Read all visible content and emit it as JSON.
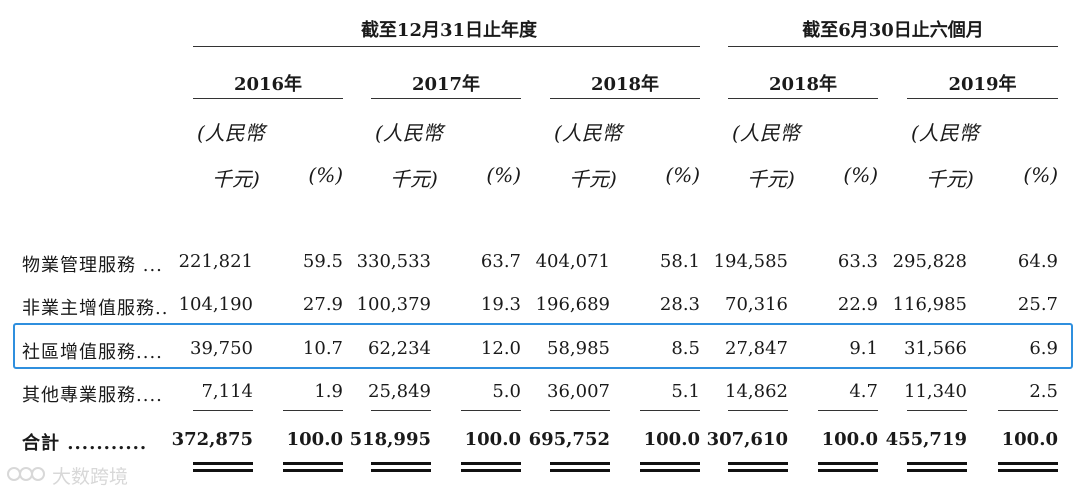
{
  "header": {
    "group1": "截至12月31日止年度",
    "group2": "截至6月30日止六個月",
    "years": [
      "2016年",
      "2017年",
      "2018年",
      "2018年",
      "2019年"
    ],
    "unit_line1": "(人民幣",
    "unit_line2": "千元)",
    "pct": "(%)"
  },
  "rows": [
    {
      "label": "物業管理服務 ...",
      "values": [
        "221,821",
        "59.5",
        "330,533",
        "63.7",
        "404,071",
        "58.1",
        "194,585",
        "63.3",
        "295,828",
        "64.9"
      ]
    },
    {
      "label": "非業主增值服務..",
      "values": [
        "104,190",
        "27.9",
        "100,379",
        "19.3",
        "196,689",
        "28.3",
        "70,316",
        "22.9",
        "116,985",
        "25.7"
      ]
    },
    {
      "label": "社區增值服務....",
      "values": [
        "39,750",
        "10.7",
        "62,234",
        "12.0",
        "58,985",
        "8.5",
        "27,847",
        "9.1",
        "31,566",
        "6.9"
      ]
    },
    {
      "label": "其他專業服務....",
      "values": [
        "7,114",
        "1.9",
        "25,849",
        "5.0",
        "36,007",
        "5.1",
        "14,862",
        "4.7",
        "11,340",
        "2.5"
      ]
    }
  ],
  "total": {
    "label": "合計 ...........",
    "values": [
      "372,875",
      "100.0",
      "518,995",
      "100.0",
      "695,752",
      "100.0",
      "307,610",
      "100.0",
      "455,719",
      "100.0"
    ]
  },
  "watermark": {
    "text": "大数跨境"
  },
  "colors": {
    "highlight": "#2f8fde"
  }
}
